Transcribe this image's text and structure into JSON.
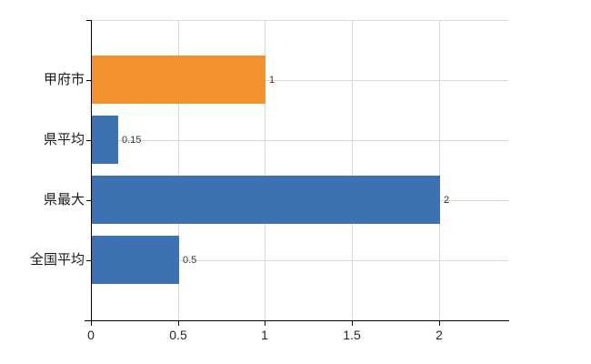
{
  "chart_data": {
    "type": "bar",
    "orientation": "horizontal",
    "title": "",
    "xlabel": "",
    "ylabel": "",
    "categories": [
      "甲府市",
      "県平均",
      "県最大",
      "全国平均"
    ],
    "values": [
      1,
      0.15,
      2,
      0.5
    ],
    "value_labels": [
      "1",
      "0.15",
      "2",
      "0.5"
    ],
    "bar_colors": [
      "#F2912E",
      "#3E71B1",
      "#3E71B1",
      "#3E71B1"
    ],
    "x_ticks": [
      0,
      0.5,
      1,
      1.5,
      2
    ],
    "x_tick_labels": [
      "0",
      "0.5",
      "1",
      "1.5",
      "2"
    ],
    "xlim": [
      0,
      2.4
    ],
    "grid": true,
    "grid_color": "#d9d9d9",
    "axis_color": "#000000",
    "legend_position": "none",
    "background_color": "#ffffff"
  }
}
